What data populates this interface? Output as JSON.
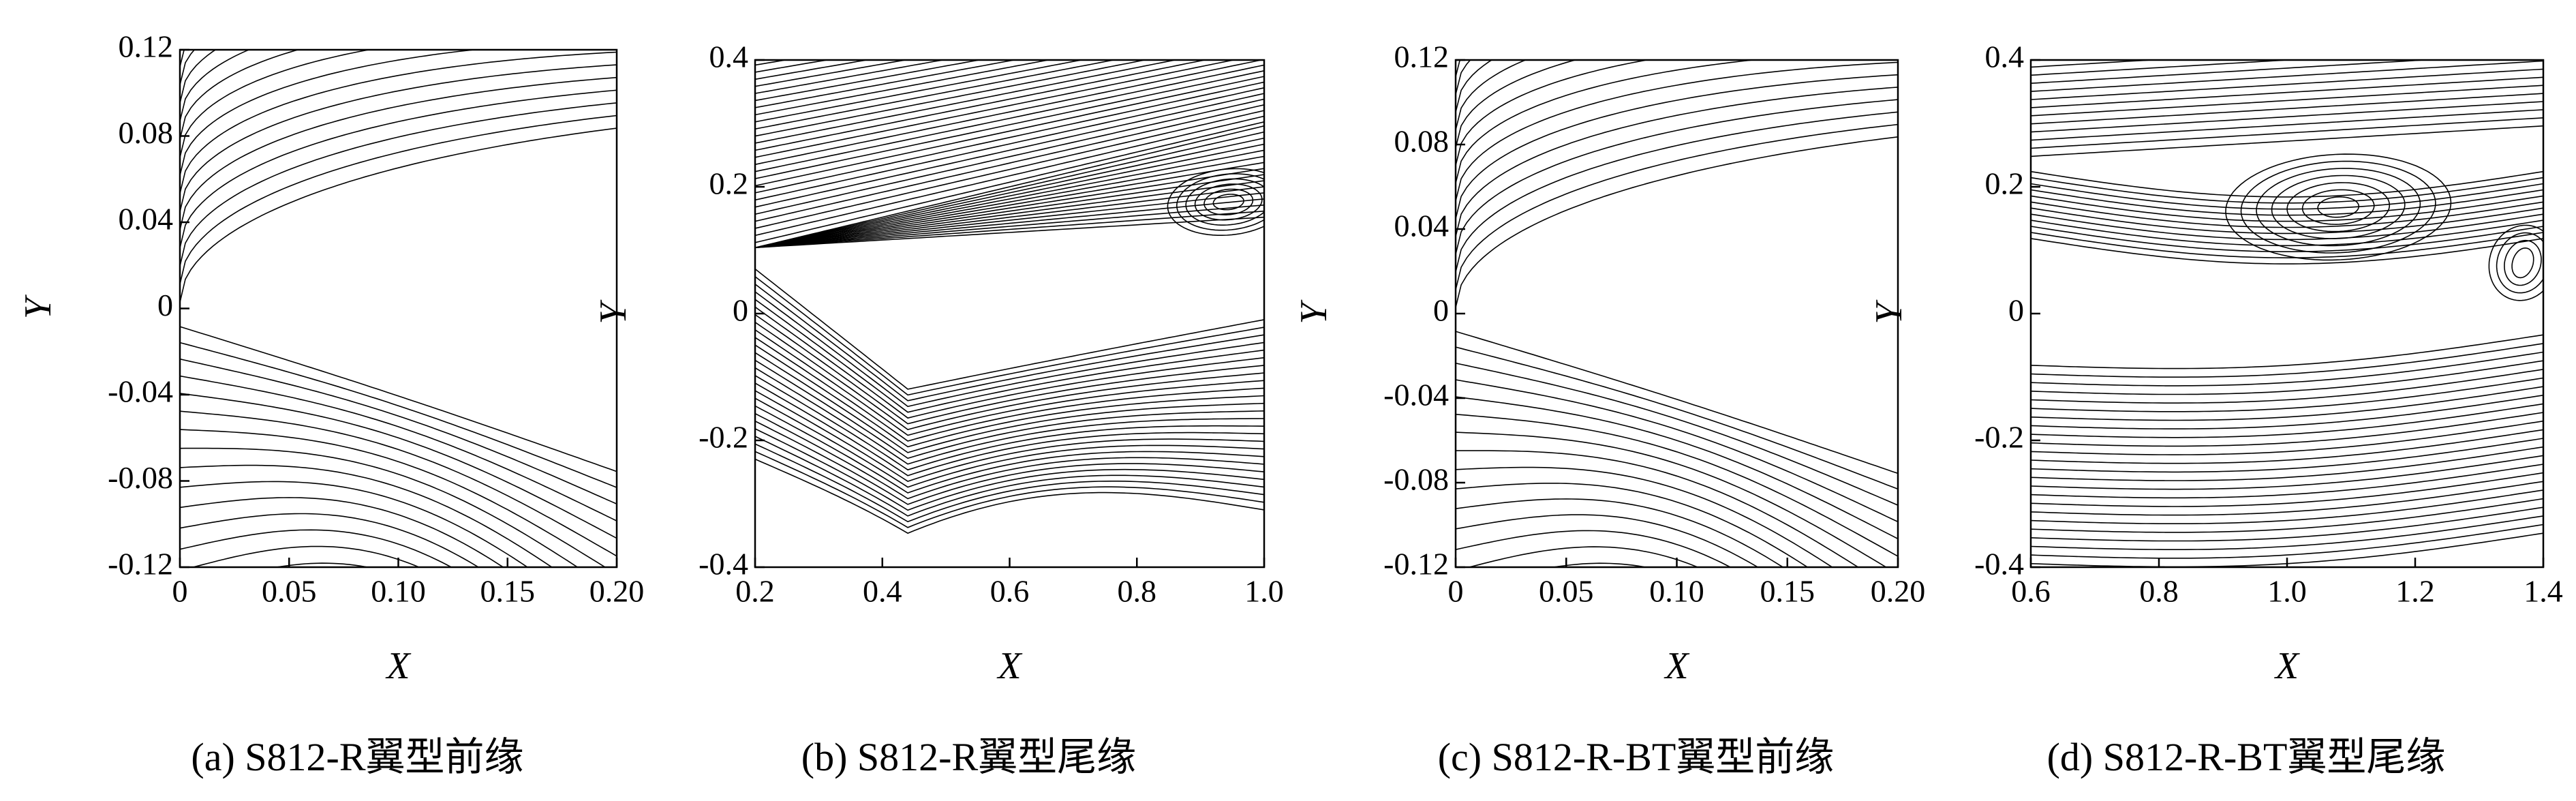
{
  "chart_data": [
    {
      "type": "streamline",
      "caption": "(a) S812-R翼型前缘",
      "xlabel": "X",
      "ylabel": "Y",
      "xlim": [
        0,
        0.2
      ],
      "ylim": [
        -0.12,
        0.12
      ],
      "xticks": [
        0,
        0.05,
        {
          "value": 0.1,
          "label": "0.10"
        },
        0.15,
        {
          "value": 0.2,
          "label": "0.20"
        }
      ],
      "yticks": [
        -0.12,
        -0.08,
        -0.04,
        0,
        0.04,
        0.08,
        0.12
      ]
    },
    {
      "type": "streamline",
      "caption": "(b) S812-R翼型尾缘",
      "xlabel": "X",
      "ylabel": "Y",
      "xlim": [
        0.2,
        1
      ],
      "ylim": [
        -0.4,
        0.4
      ],
      "xticks": [
        0.2,
        0.4,
        0.6,
        0.8,
        {
          "value": 1,
          "label": "1.0"
        }
      ],
      "yticks": [
        -0.4,
        -0.2,
        0,
        0.2,
        0.4
      ]
    },
    {
      "type": "streamline",
      "caption": "(c) S812-R-BT翼型前缘",
      "xlabel": "X",
      "ylabel": "Y",
      "xlim": [
        0,
        0.2
      ],
      "ylim": [
        -0.12,
        0.12
      ],
      "xticks": [
        0,
        0.05,
        {
          "value": 0.1,
          "label": "0.10"
        },
        0.15,
        {
          "value": 0.2,
          "label": "0.20"
        }
      ],
      "yticks": [
        -0.12,
        -0.08,
        -0.04,
        0,
        0.04,
        0.08,
        0.12
      ]
    },
    {
      "type": "streamline",
      "caption": "(d) S812-R-BT翼型尾缘",
      "xlabel": "X",
      "ylabel": "Y",
      "xlim": [
        0.6,
        1.4
      ],
      "ylim": [
        -0.4,
        0.4
      ],
      "xticks": [
        0.6,
        0.8,
        {
          "value": 1,
          "label": "1.0"
        },
        1.2,
        1.4
      ],
      "yticks": [
        -0.4,
        -0.2,
        0,
        0.2,
        0.4
      ]
    }
  ]
}
